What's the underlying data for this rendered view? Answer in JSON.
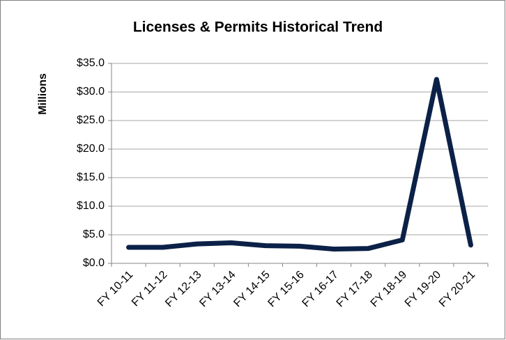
{
  "chart_data": {
    "type": "line",
    "title": "Licenses & Permits Historical Trend",
    "y_label": "Millions",
    "categories": [
      "FY 10-11",
      "FY 11-12",
      "FY 12-13",
      "FY 13-14",
      "FY 14-15",
      "FY 15-16",
      "FY 16-17",
      "FY 17-18",
      "FY 18-19",
      "FY 19-20",
      "FY 20-21"
    ],
    "series": [
      {
        "name": "Licenses & Permits",
        "color": "#0c2148",
        "values": [
          2.8,
          2.8,
          3.4,
          3.6,
          3.1,
          3.0,
          2.5,
          2.6,
          4.1,
          32.2,
          3.2
        ]
      }
    ],
    "ylim": [
      0,
      35
    ],
    "yticks": [
      {
        "value": 0,
        "label": "$0.0"
      },
      {
        "value": 5,
        "label": "$5.0"
      },
      {
        "value": 10,
        "label": "$10.0"
      },
      {
        "value": 15,
        "label": "$15.0"
      },
      {
        "value": 20,
        "label": "$20.0"
      },
      {
        "value": 25,
        "label": "$25.0"
      },
      {
        "value": 30,
        "label": "$30.0"
      },
      {
        "value": 35,
        "label": "$35.0"
      }
    ],
    "grid": true
  }
}
